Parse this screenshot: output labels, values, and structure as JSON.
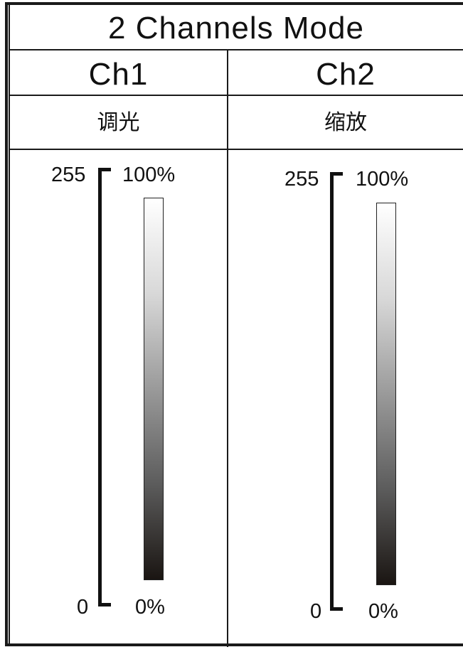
{
  "title": "2 Channels Mode",
  "channels": [
    {
      "name": "Ch1",
      "function": "调光",
      "dmx_max": "255",
      "dmx_min": "0",
      "percent_max": "100%",
      "percent_min": "0%"
    },
    {
      "name": "Ch2",
      "function": "缩放",
      "dmx_max": "255",
      "dmx_min": "0",
      "percent_max": "100%",
      "percent_min": "0%"
    }
  ],
  "colors": {
    "line": "#1a1a1a",
    "gradient_top": "#ffffff",
    "gradient_bottom": "#1a1512"
  }
}
